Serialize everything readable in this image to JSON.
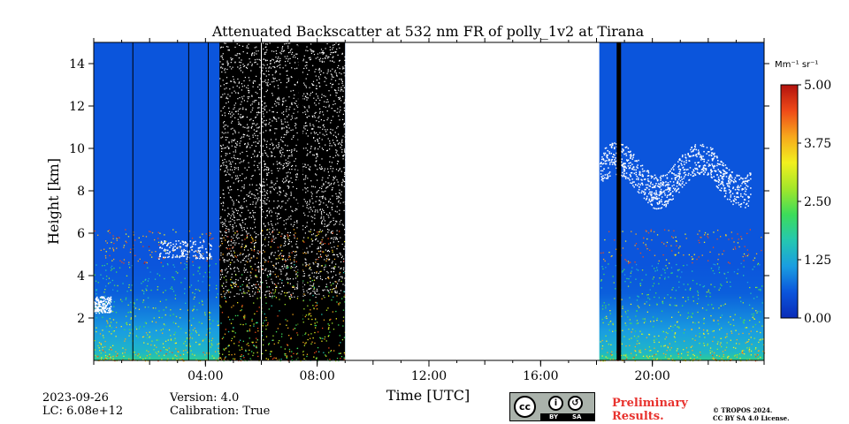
{
  "chart_data": {
    "type": "heatmap",
    "title": "Attenuated Backscatter at 532 nm FR of polly_1v2 at Tirana",
    "xlabel": "Time [UTC]",
    "ylabel": "Height [km]",
    "x_range_hours": [
      0,
      24
    ],
    "y_range_km": [
      0,
      15
    ],
    "x_ticks": [
      {
        "hour": 4,
        "label": "04:00"
      },
      {
        "hour": 8,
        "label": "08:00"
      },
      {
        "hour": 12,
        "label": "12:00"
      },
      {
        "hour": 16,
        "label": "16:00"
      },
      {
        "hour": 20,
        "label": "20:00"
      }
    ],
    "y_ticks": [
      {
        "km": 2,
        "label": "2"
      },
      {
        "km": 4,
        "label": "4"
      },
      {
        "km": 6,
        "label": "6"
      },
      {
        "km": 8,
        "label": "8"
      },
      {
        "km": 10,
        "label": "10"
      },
      {
        "km": 12,
        "label": "12"
      },
      {
        "km": 14,
        "label": "14"
      }
    ],
    "colorbar": {
      "unit_label": "Mm⁻¹ sr⁻¹",
      "range": [
        0.0,
        5.0
      ],
      "ticks": [
        {
          "value": 0.0,
          "label": "0.00"
        },
        {
          "value": 1.25,
          "label": "1.25"
        },
        {
          "value": 2.5,
          "label": "2.50"
        },
        {
          "value": 3.75,
          "label": "3.75"
        },
        {
          "value": 5.0,
          "label": "5.00"
        }
      ],
      "colormap": [
        "#0a2cb8",
        "#0b55dc",
        "#1a9ee0",
        "#25c7b0",
        "#3ddc5a",
        "#a3e62a",
        "#f2f01e",
        "#f7a81c",
        "#ef4a18",
        "#b3120e"
      ]
    },
    "data_gaps_hours": [
      [
        9.0,
        18.1
      ]
    ],
    "daylight_noise_hours": [
      4.5,
      9.0
    ],
    "dark_profiles_hours": [
      1.4,
      3.4,
      4.1,
      7.4,
      18.8
    ],
    "white_profiles_hours": [
      6.0
    ],
    "features": [
      {
        "kind": "aerosol_layer",
        "hours": [
          0,
          24
        ],
        "height_km": [
          0,
          4.5
        ]
      },
      {
        "kind": "residual_layer",
        "hours": [
          1.0,
          24
        ],
        "height_km": [
          4.5,
          6.0
        ]
      },
      {
        "kind": "cirrus_cloud",
        "hours": [
          18.1,
          23.5
        ],
        "height_km": [
          7.0,
          10.5
        ]
      },
      {
        "kind": "low_cloud",
        "hours": [
          0,
          0.6
        ],
        "height_km": [
          2.0,
          3.3
        ]
      },
      {
        "kind": "mid_cloud",
        "hours": [
          2.3,
          4.2
        ],
        "height_km": [
          4.5,
          6.0
        ]
      }
    ]
  },
  "footer": {
    "date": "2023-09-26",
    "lc": "LC: 6.08e+12",
    "version": "Version: 4.0",
    "calibration": "Calibration: True",
    "preliminary_1": "Preliminary",
    "preliminary_2": "Results.",
    "license_1": "© TROPOS 2024.",
    "license_2": "CC BY SA 4.0 License.",
    "cc_text": "cc",
    "by_text": "BY",
    "sa_text": "SA"
  },
  "colors": {
    "background_blue": "#0b55dc",
    "preliminary_red": "#e8322e"
  }
}
